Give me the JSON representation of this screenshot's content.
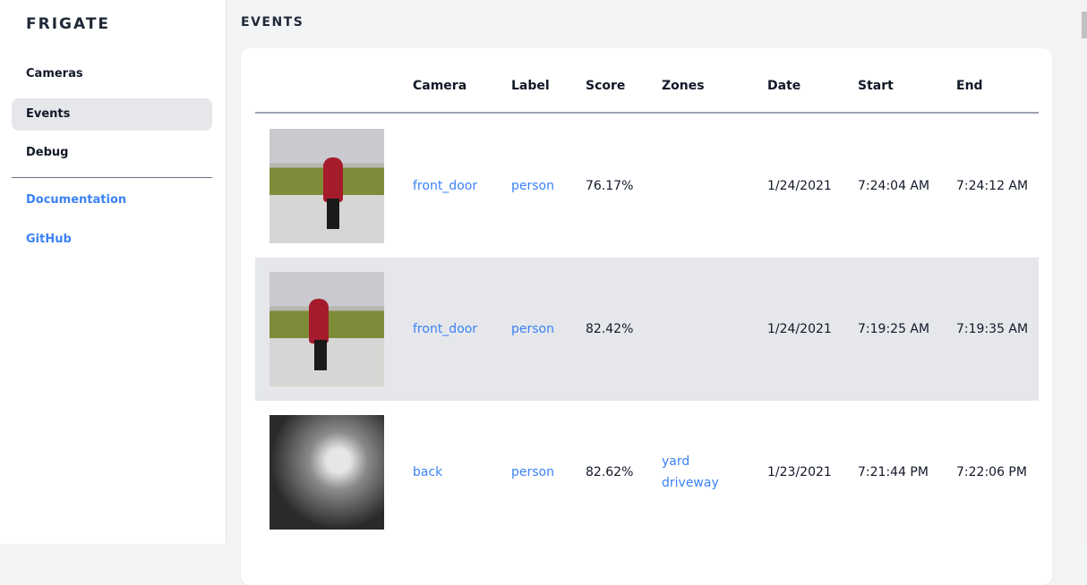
{
  "sidebar": {
    "brand": "FRIGATE",
    "items": [
      {
        "label": "Cameras",
        "active": false
      },
      {
        "label": "Events",
        "active": true
      },
      {
        "label": "Debug",
        "active": false
      }
    ],
    "links": [
      {
        "label": "Documentation"
      },
      {
        "label": "GitHub"
      }
    ]
  },
  "page": {
    "title": "EVENTS"
  },
  "table": {
    "columns": [
      "",
      "Camera",
      "Label",
      "Score",
      "Zones",
      "Date",
      "Start",
      "End"
    ],
    "rows": [
      {
        "thumbnail": "person walking dog (color)",
        "camera": "front_door",
        "label": "person",
        "score": "76.17%",
        "zones": [],
        "date": "1/24/2021",
        "start": "7:24:04 AM",
        "end": "7:24:12 AM"
      },
      {
        "thumbnail": "person walking dog (color)",
        "camera": "front_door",
        "label": "person",
        "score": "82.42%",
        "zones": [],
        "date": "1/24/2021",
        "start": "7:19:25 AM",
        "end": "7:19:35 AM"
      },
      {
        "thumbnail": "person at night (grayscale)",
        "camera": "back",
        "label": "person",
        "score": "82.62%",
        "zones": [
          "yard",
          "driveway"
        ],
        "date": "1/23/2021",
        "start": "7:21:44 PM",
        "end": "7:22:06 PM"
      }
    ]
  },
  "colors": {
    "link": "#3b82f6",
    "active_nav": "#e5e7eb",
    "row_alt": "#e5e7eb"
  }
}
